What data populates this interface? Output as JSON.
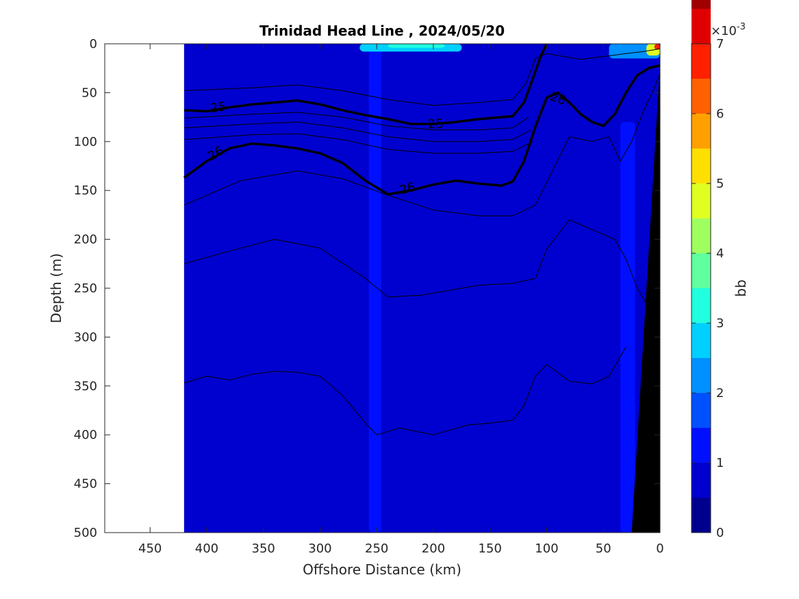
{
  "chart_data": {
    "type": "heatmap",
    "title": "Trinidad Head Line , 2024/05/20",
    "xlabel": "Offshore Distance (km)",
    "ylabel": "Depth (m)",
    "xlim": [
      490,
      0
    ],
    "ylim": [
      0,
      500
    ],
    "x_reversed": true,
    "y_reversed": true,
    "x_ticks": [
      450,
      400,
      350,
      300,
      250,
      200,
      150,
      100,
      50,
      0
    ],
    "y_ticks": [
      0,
      50,
      100,
      150,
      200,
      250,
      300,
      350,
      400,
      450,
      500
    ],
    "data_extent_x": [
      420,
      0
    ],
    "background_value": 0.7,
    "field_patches": [
      {
        "x_from": 420,
        "x_to": 0,
        "depth_from": 0,
        "depth_to": 500,
        "value": 0.7
      },
      {
        "x_from": 257,
        "x_to": 246,
        "depth_from": 0,
        "depth_to": 500,
        "value": 1.1
      },
      {
        "x_from": 35,
        "x_to": 22,
        "depth_from": 80,
        "depth_to": 500,
        "value": 1.1
      },
      {
        "x_from": 265,
        "x_to": 175,
        "depth_from": 0,
        "depth_to": 8,
        "value": 2.5
      },
      {
        "x_from": 240,
        "x_to": 190,
        "depth_from": 0,
        "depth_to": 4,
        "value": 3.0
      },
      {
        "x_from": 45,
        "x_to": 0,
        "depth_from": 0,
        "depth_to": 15,
        "value": 2.0
      },
      {
        "x_from": 12,
        "x_to": 0,
        "depth_from": 0,
        "depth_to": 12,
        "value": 4.5
      },
      {
        "x_from": 5,
        "x_to": 0,
        "depth_from": 0,
        "depth_to": 6,
        "value": 6.5
      }
    ],
    "contours": [
      {
        "level": 25,
        "emphasis": true,
        "labeled": true,
        "x": [
          420,
          400,
          380,
          360,
          340,
          320,
          300,
          280,
          260,
          240,
          220,
          200,
          180,
          160,
          140,
          130,
          120,
          112,
          105,
          100
        ],
        "y": [
          68,
          69,
          65,
          62,
          60,
          58,
          62,
          68,
          73,
          77,
          82,
          82,
          80,
          77,
          75,
          74,
          60,
          35,
          12,
          0
        ]
      },
      {
        "level": 26,
        "emphasis": true,
        "labeled": true,
        "x": [
          420,
          400,
          380,
          360,
          340,
          320,
          300,
          280,
          260,
          240,
          220,
          200,
          180,
          160,
          140,
          130,
          120,
          110,
          100,
          90,
          80,
          70,
          60,
          50,
          40,
          30,
          20,
          10,
          0
        ],
        "y": [
          137,
          120,
          107,
          102,
          104,
          107,
          112,
          122,
          140,
          154,
          150,
          144,
          140,
          143,
          145,
          141,
          120,
          85,
          55,
          50,
          60,
          72,
          80,
          84,
          72,
          50,
          32,
          25,
          22
        ]
      },
      {
        "level": 25.2,
        "emphasis": false,
        "labeled": false,
        "x": [
          420,
          360,
          320,
          280,
          240,
          200,
          160,
          130,
          118,
          110,
          100,
          90,
          70,
          50,
          30,
          15,
          5,
          0
        ],
        "y": [
          48,
          45,
          42,
          48,
          57,
          63,
          60,
          57,
          40,
          15,
          10,
          12,
          16,
          13,
          10,
          8,
          6,
          5
        ]
      },
      {
        "level": 25.4,
        "emphasis": false,
        "labeled": false,
        "x": [
          420,
          360,
          320,
          280,
          240,
          200,
          160,
          130,
          116
        ],
        "y": [
          76,
          72,
          70,
          75,
          84,
          88,
          88,
          86,
          75
        ]
      },
      {
        "level": 25.6,
        "emphasis": false,
        "labeled": false,
        "x": [
          420,
          360,
          320,
          280,
          240,
          200,
          160,
          130,
          114
        ],
        "y": [
          86,
          82,
          80,
          86,
          95,
          100,
          100,
          98,
          88
        ]
      },
      {
        "level": 25.8,
        "emphasis": false,
        "labeled": false,
        "x": [
          420,
          360,
          320,
          280,
          240,
          200,
          160,
          130,
          112
        ],
        "y": [
          98,
          93,
          92,
          98,
          108,
          112,
          112,
          110,
          100
        ]
      },
      {
        "level": 26.2,
        "emphasis": false,
        "labeled": false,
        "x": [
          420,
          370,
          320,
          280,
          240,
          200,
          160,
          130,
          110,
          95,
          80,
          60,
          45,
          35,
          25,
          15,
          5,
          0
        ],
        "y": [
          165,
          140,
          130,
          138,
          155,
          170,
          176,
          176,
          165,
          130,
          95,
          100,
          95,
          120,
          100,
          70,
          45,
          30
        ]
      },
      {
        "level": 26.4,
        "emphasis": false,
        "labeled": false,
        "x": [
          420,
          380,
          340,
          300,
          260,
          240,
          210,
          190,
          160,
          130,
          110,
          100,
          80,
          60,
          40,
          30,
          20,
          10,
          0
        ],
        "y": [
          225,
          212,
          200,
          209,
          240,
          259,
          257,
          253,
          247,
          245,
          240,
          210,
          180,
          190,
          200,
          220,
          250,
          270,
          300
        ]
      },
      {
        "level": 26.6,
        "emphasis": false,
        "labeled": false,
        "x": [
          420,
          400,
          380,
          360,
          340,
          320,
          300,
          280,
          260,
          250,
          230,
          200,
          170,
          150,
          130,
          120,
          110,
          100,
          80,
          60,
          45,
          30
        ],
        "y": [
          347,
          340,
          344,
          338,
          335,
          336,
          340,
          360,
          388,
          400,
          393,
          400,
          390,
          388,
          385,
          370,
          340,
          328,
          345,
          348,
          340,
          310
        ]
      }
    ],
    "contour_labels": [
      {
        "text": "25",
        "x": 390,
        "y": 65,
        "angle": -8
      },
      {
        "text": "25",
        "x": 198,
        "y": 82,
        "angle": -3
      },
      {
        "text": "26",
        "x": 392,
        "y": 112,
        "angle": -30
      },
      {
        "text": "26",
        "x": 223,
        "y": 148,
        "angle": -15
      },
      {
        "text": "26",
        "x": 90,
        "y": 56,
        "angle": 20
      }
    ],
    "bathymetry": {
      "fill": "#000000",
      "surface_x": 0,
      "surface_depth": 20,
      "bottom_x": 25,
      "bottom_depth": 500
    },
    "colorbar": {
      "label": "bb",
      "multiplier": "×10",
      "multiplier_exp": "-3",
      "min": 0,
      "max": 7,
      "step": 0.5,
      "ticks": [
        0,
        1,
        2,
        3,
        4,
        5,
        6,
        7
      ],
      "colors": [
        "#00008F",
        "#0000CF",
        "#0010FF",
        "#0050FF",
        "#0090FF",
        "#00D0FF",
        "#20FFDF",
        "#60FF9F",
        "#A0FF60",
        "#DFFF20",
        "#FFDF00",
        "#FFA000",
        "#FF6000",
        "#FF2000",
        "#DF0000",
        "#9F0000"
      ]
    }
  }
}
